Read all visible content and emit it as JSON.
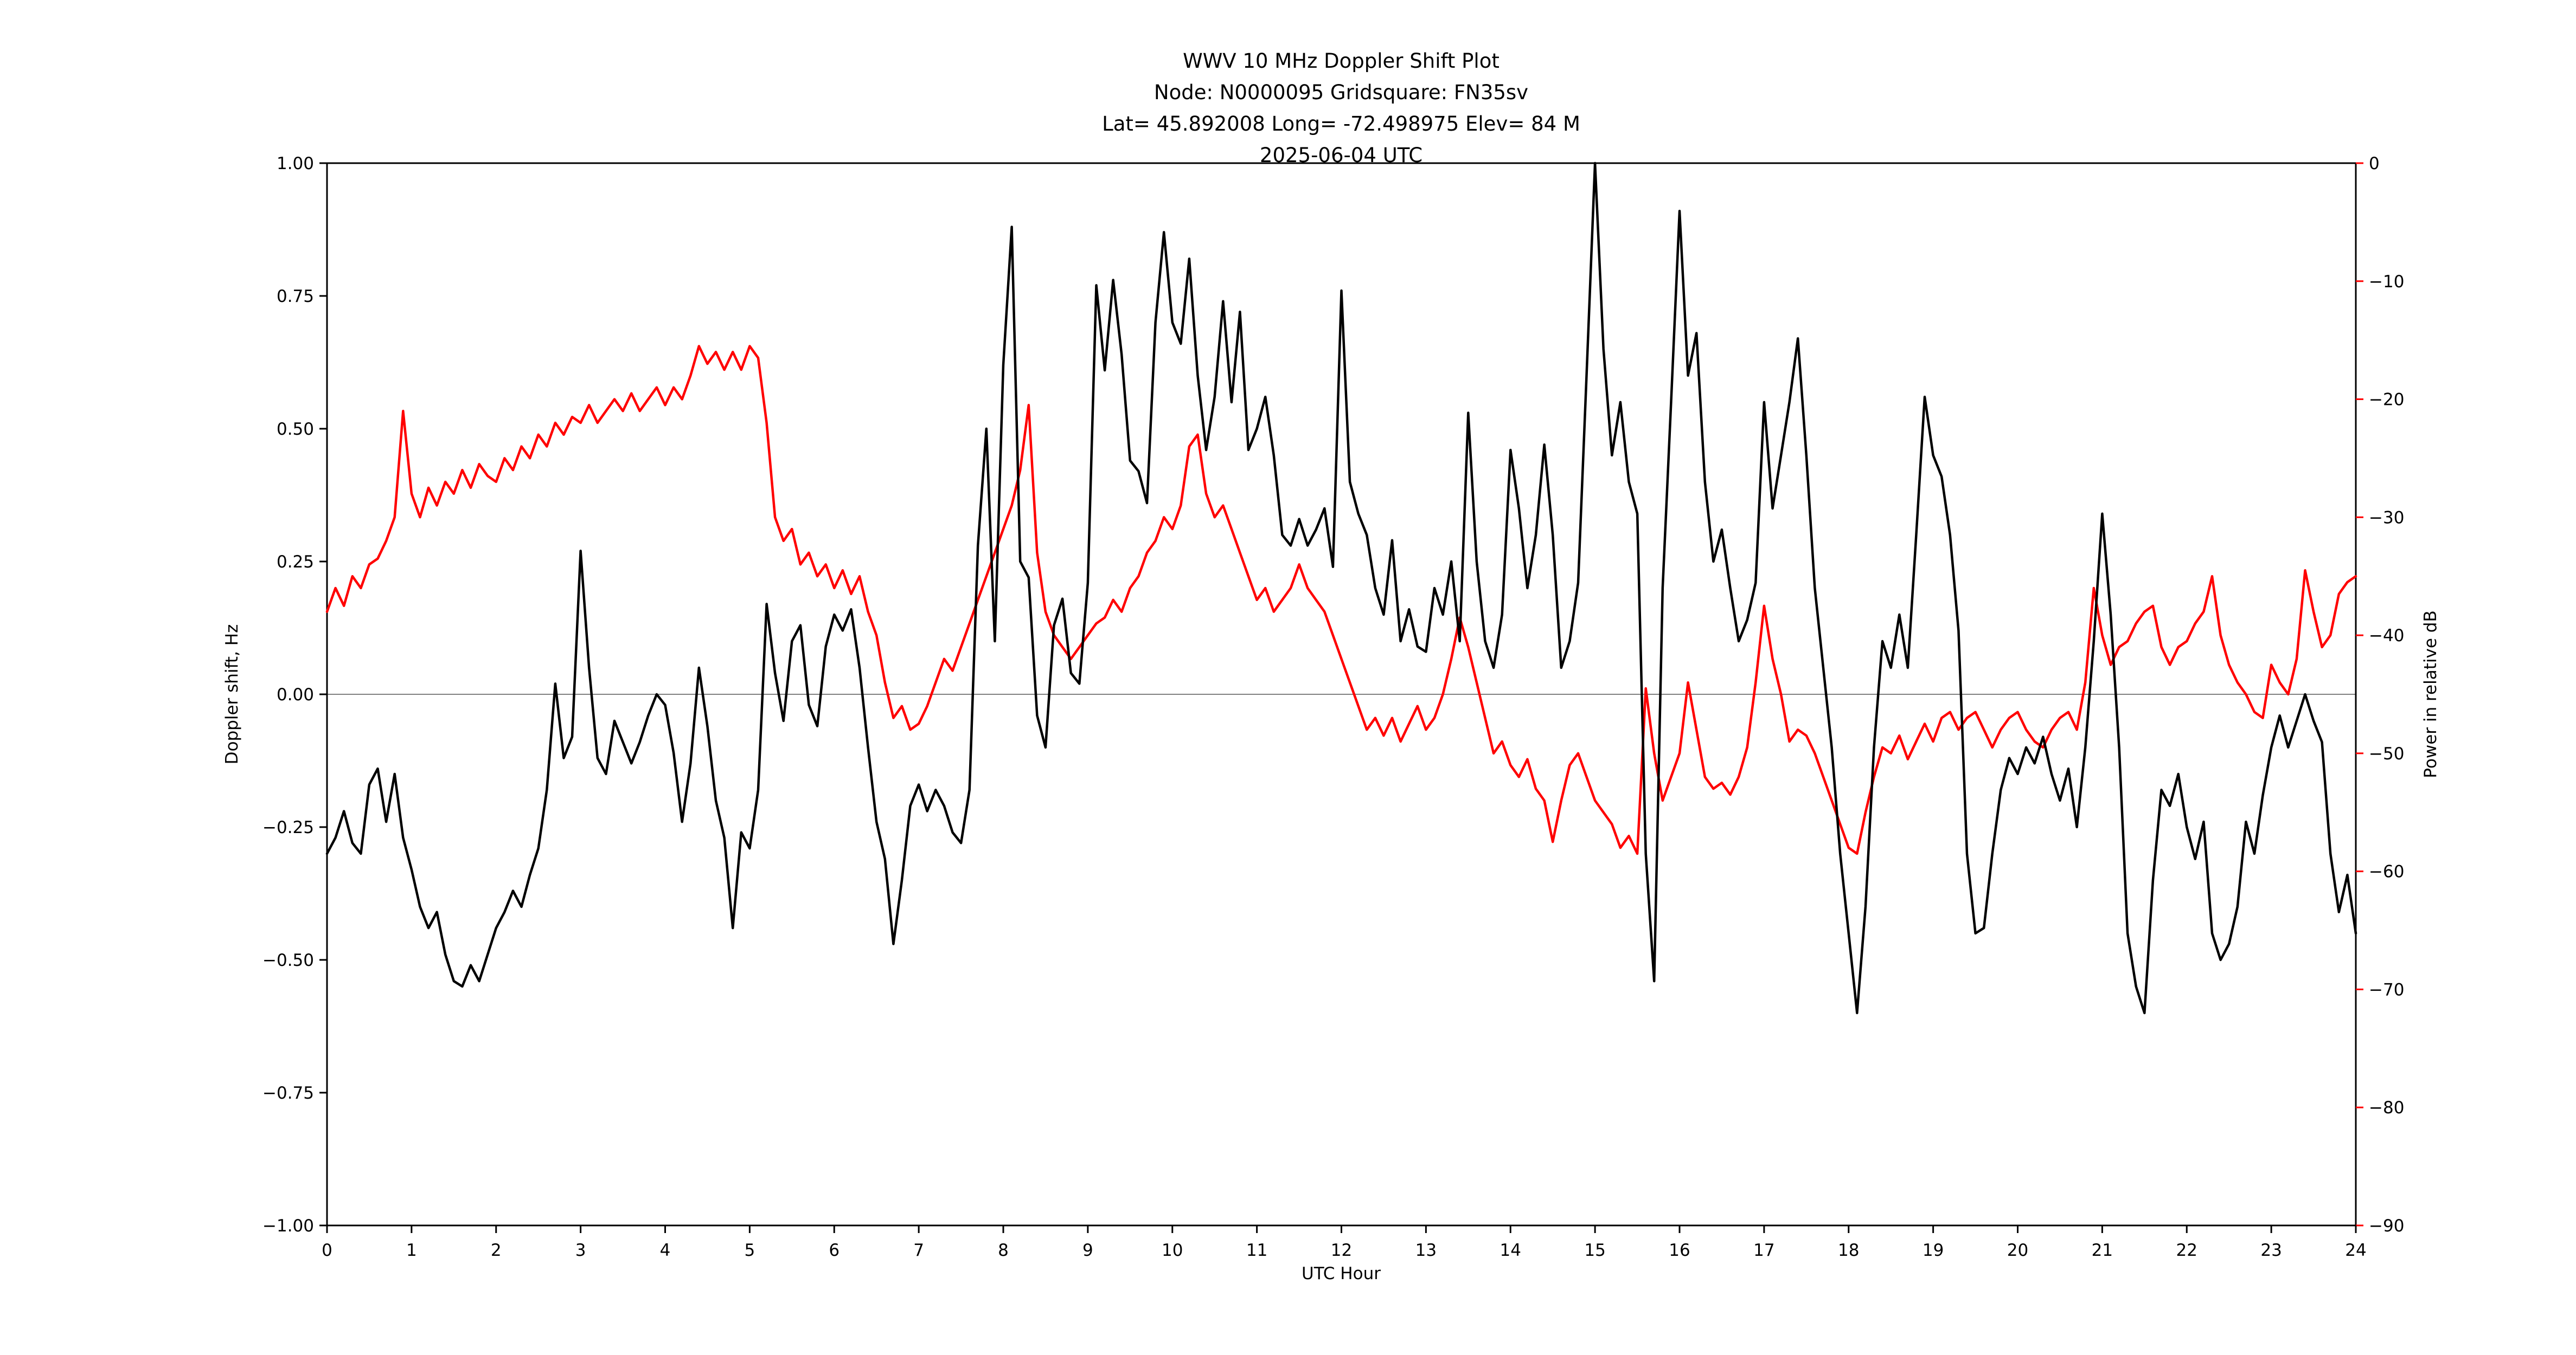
{
  "figure": {
    "background": "#ffffff"
  },
  "chart_data": {
    "type": "line",
    "title": "WWV 10 MHz Doppler Shift Plot",
    "subtitle_lines": [
      "Node:  N0000095     Gridsquare:  FN35sv",
      "Lat= 45.892008    Long= -72.498975    Elev= 84 M",
      "2025-06-04  UTC"
    ],
    "xlabel": "UTC Hour",
    "ylabel_left": "Doppler shift, Hz",
    "ylabel_right": "Power in relative dB",
    "xlim": [
      0,
      24
    ],
    "ylim_left": [
      -1.0,
      1.0
    ],
    "ylim_right": [
      -90,
      0
    ],
    "grid": {
      "zero_line": true,
      "zero_line_color": "#808080"
    },
    "legend": "none",
    "xticks": {
      "values": [
        0,
        1,
        2,
        3,
        4,
        5,
        6,
        7,
        8,
        9,
        10,
        11,
        12,
        13,
        14,
        15,
        16,
        17,
        18,
        19,
        20,
        21,
        22,
        23,
        24
      ],
      "labels": [
        "0",
        "1",
        "2",
        "3",
        "4",
        "5",
        "6",
        "7",
        "8",
        "9",
        "10",
        "11",
        "12",
        "13",
        "14",
        "15",
        "16",
        "17",
        "18",
        "19",
        "20",
        "21",
        "22",
        "23",
        "24"
      ]
    },
    "yticks_left": {
      "values": [
        1.0,
        0.75,
        0.5,
        0.25,
        0.0,
        -0.25,
        -0.5,
        -0.75,
        -1.0
      ],
      "labels": [
        "1.00",
        "0.75",
        "0.50",
        "0.25",
        "0.00",
        "−0.25",
        "−0.50",
        "−0.75",
        "−1.00"
      ]
    },
    "yticks_right": {
      "values": [
        0,
        -10,
        -20,
        -30,
        -40,
        -50,
        -60,
        -70,
        -80,
        -90
      ],
      "labels": [
        "0",
        "−10",
        "−20",
        "−30",
        "−40",
        "−50",
        "−60",
        "−70",
        "−80",
        "−90"
      ]
    },
    "x_start": 0,
    "x_step": 0.1,
    "series": [
      {
        "name": "Doppler shift (Hz)",
        "axis": "left",
        "color": "#000000",
        "values": [
          -0.3,
          -0.27,
          -0.22,
          -0.28,
          -0.3,
          -0.17,
          -0.14,
          -0.24,
          -0.15,
          -0.27,
          -0.33,
          -0.4,
          -0.44,
          -0.41,
          -0.49,
          -0.54,
          -0.55,
          -0.51,
          -0.54,
          -0.49,
          -0.44,
          -0.41,
          -0.37,
          -0.4,
          -0.34,
          -0.29,
          -0.18,
          0.02,
          -0.12,
          -0.08,
          0.27,
          0.05,
          -0.12,
          -0.15,
          -0.05,
          -0.09,
          -0.13,
          -0.09,
          -0.04,
          0.0,
          -0.02,
          -0.11,
          -0.24,
          -0.13,
          0.05,
          -0.06,
          -0.2,
          -0.27,
          -0.44,
          -0.26,
          -0.29,
          -0.18,
          0.17,
          0.04,
          -0.05,
          0.1,
          0.13,
          -0.02,
          -0.06,
          0.09,
          0.15,
          0.12,
          0.16,
          0.05,
          -0.1,
          -0.24,
          -0.31,
          -0.47,
          -0.35,
          -0.21,
          -0.17,
          -0.22,
          -0.18,
          -0.21,
          -0.26,
          -0.28,
          -0.18,
          0.28,
          0.5,
          0.1,
          0.62,
          0.88,
          0.25,
          0.22,
          -0.04,
          -0.1,
          0.13,
          0.18,
          0.04,
          0.02,
          0.21,
          0.77,
          0.61,
          0.78,
          0.64,
          0.44,
          0.42,
          0.36,
          0.7,
          0.87,
          0.7,
          0.66,
          0.82,
          0.6,
          0.46,
          0.56,
          0.74,
          0.55,
          0.72,
          0.46,
          0.5,
          0.56,
          0.45,
          0.3,
          0.28,
          0.33,
          0.28,
          0.31,
          0.35,
          0.24,
          0.76,
          0.4,
          0.34,
          0.3,
          0.2,
          0.15,
          0.29,
          0.1,
          0.16,
          0.09,
          0.08,
          0.2,
          0.15,
          0.25,
          0.1,
          0.53,
          0.25,
          0.1,
          0.05,
          0.15,
          0.46,
          0.35,
          0.2,
          0.3,
          0.47,
          0.3,
          0.05,
          0.1,
          0.21,
          0.6,
          1.0,
          0.65,
          0.45,
          0.55,
          0.4,
          0.34,
          -0.3,
          -0.54,
          0.2,
          0.55,
          0.91,
          0.6,
          0.68,
          0.4,
          0.25,
          0.31,
          0.2,
          0.1,
          0.14,
          0.21,
          0.55,
          0.35,
          0.45,
          0.55,
          0.67,
          0.45,
          0.2,
          0.05,
          -0.1,
          -0.3,
          -0.45,
          -0.6,
          -0.4,
          -0.1,
          0.1,
          0.05,
          0.15,
          0.05,
          0.3,
          0.56,
          0.45,
          0.41,
          0.3,
          0.12,
          -0.3,
          -0.45,
          -0.44,
          -0.3,
          -0.18,
          -0.12,
          -0.15,
          -0.1,
          -0.13,
          -0.08,
          -0.15,
          -0.2,
          -0.14,
          -0.25,
          -0.1,
          0.1,
          0.34,
          0.15,
          -0.1,
          -0.45,
          -0.55,
          -0.6,
          -0.35,
          -0.18,
          -0.21,
          -0.15,
          -0.25,
          -0.31,
          -0.24,
          -0.45,
          -0.5,
          -0.47,
          -0.4,
          -0.24,
          -0.3,
          -0.19,
          -0.1,
          -0.04,
          -0.1,
          -0.05,
          0.0,
          -0.05,
          -0.09,
          -0.3,
          -0.41,
          -0.34,
          -0.45
        ]
      },
      {
        "name": "Power in relative dB",
        "axis": "right",
        "color": "#ff0000",
        "values": [
          -38,
          -36,
          -37.5,
          -35,
          -36,
          -34,
          -33.5,
          -32,
          -30,
          -21,
          -28,
          -30,
          -27.5,
          -29,
          -27,
          -28,
          -26,
          -27.5,
          -25.5,
          -26.5,
          -27,
          -25,
          -26,
          -24,
          -25,
          -23,
          -24,
          -22,
          -23,
          -21.5,
          -22,
          -20.5,
          -22,
          -21,
          -20,
          -21,
          -19.5,
          -21,
          -20,
          -19,
          -20.5,
          -19,
          -20,
          -18,
          -15.5,
          -17,
          -16,
          -17.5,
          -16,
          -17.5,
          -15.5,
          -16.5,
          -22,
          -30,
          -32,
          -31,
          -34,
          -33,
          -35,
          -34,
          -36,
          -34.5,
          -36.5,
          -35,
          -38,
          -40,
          -44,
          -47,
          -46,
          -48,
          -47.5,
          -46,
          -44,
          -42,
          -43,
          -41,
          -39,
          -37,
          -35,
          -33,
          -31,
          -29,
          -26,
          -20.5,
          -33,
          -38,
          -40,
          -41,
          -42,
          -41,
          -40,
          -39,
          -38.5,
          -37,
          -38,
          -36,
          -35,
          -33,
          -32,
          -30,
          -31,
          -29,
          -24,
          -23,
          -28,
          -30,
          -29,
          -31,
          -33,
          -35,
          -37,
          -36,
          -38,
          -37,
          -36,
          -34,
          -36,
          -37,
          -38,
          -40,
          -42,
          -44,
          -46,
          -48,
          -47,
          -48.5,
          -47,
          -49,
          -47.5,
          -46,
          -48,
          -47,
          -45,
          -42,
          -38.5,
          -41,
          -44,
          -47,
          -50,
          -49,
          -51,
          -52,
          -50.5,
          -53,
          -54,
          -57.5,
          -54,
          -51,
          -50,
          -52,
          -54,
          -55,
          -56,
          -58,
          -57,
          -58.5,
          -44.5,
          -50,
          -54,
          -52,
          -50,
          -44,
          -48,
          -52,
          -53,
          -52.5,
          -53.5,
          -52,
          -49.5,
          -44,
          -37.5,
          -42,
          -45,
          -49,
          -48,
          -48.5,
          -50,
          -52,
          -54,
          -56,
          -58,
          -58.5,
          -55,
          -52,
          -49.5,
          -50,
          -48.5,
          -50.5,
          -49,
          -47.5,
          -49,
          -47,
          -46.5,
          -48,
          -47,
          -46.5,
          -48,
          -49.5,
          -48,
          -47,
          -46.5,
          -48,
          -49,
          -49.5,
          -48,
          -47,
          -46.5,
          -48,
          -44,
          -36,
          -40,
          -42.5,
          -41,
          -40.5,
          -39,
          -38,
          -37.5,
          -41,
          -42.5,
          -41,
          -40.5,
          -39,
          -38,
          -35,
          -40,
          -42.5,
          -44,
          -45,
          -46.5,
          -47,
          -42.5,
          -44,
          -45,
          -42,
          -34.5,
          -38,
          -41,
          -40,
          -36.5,
          -35.5,
          -35
        ]
      }
    ]
  },
  "colors": {
    "background": "#ffffff",
    "axes": "#000000",
    "doppler_trace": "#000000",
    "power_trace": "#ff0000",
    "zero_line": "#808080"
  }
}
